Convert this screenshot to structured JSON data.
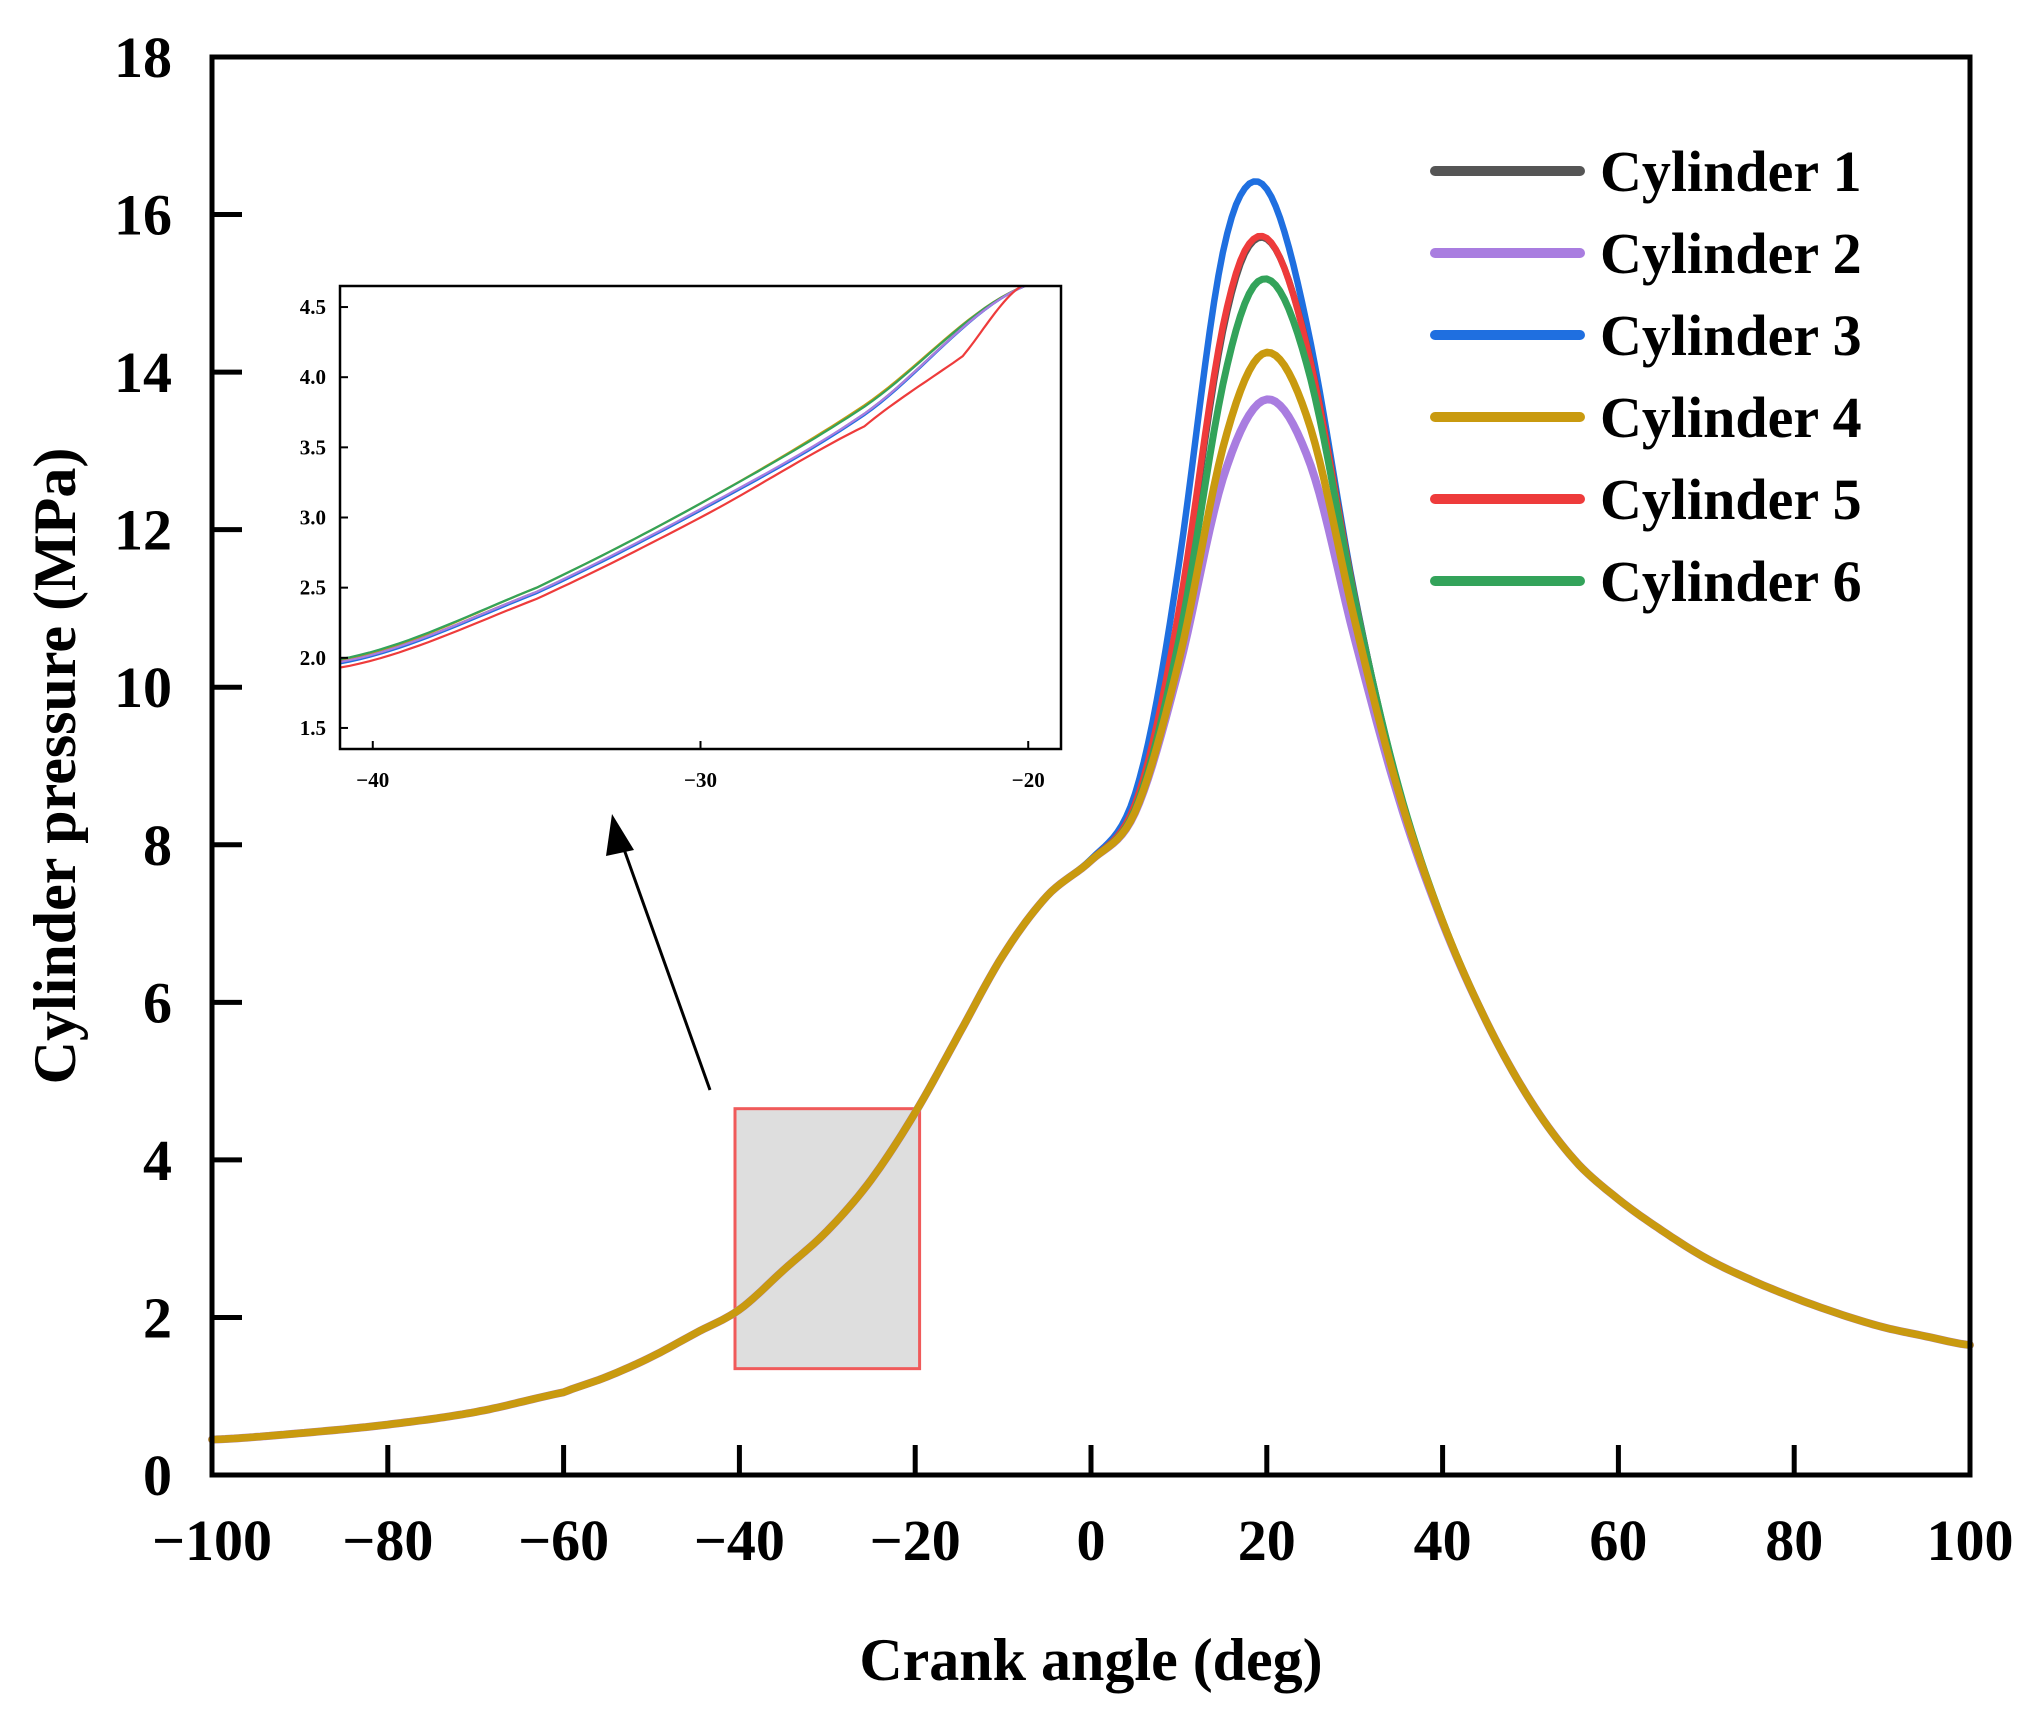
{
  "chart_data": {
    "type": "line",
    "title": "",
    "xlabel": "Crank angle (deg)",
    "ylabel": "Cylinder pressure (MPa)",
    "xlim": [
      -100,
      100
    ],
    "ylim": [
      0,
      18
    ],
    "xticks": [
      "−100",
      "−80",
      "−60",
      "−40",
      "−20",
      "0",
      "20",
      "40",
      "60",
      "80",
      "100"
    ],
    "yticks": [
      "0",
      "2",
      "4",
      "6",
      "8",
      "10",
      "12",
      "14",
      "16",
      "18"
    ],
    "legend_position": "top-right",
    "common_curve": {
      "x": [
        -100,
        -90,
        -80,
        -70,
        -60,
        -55,
        -50,
        -45,
        -40,
        -35,
        -30,
        -25,
        -20,
        -15,
        -10,
        -5,
        0,
        5,
        10,
        15,
        20,
        25,
        30,
        35,
        40,
        45,
        50,
        55,
        60,
        65,
        70,
        75,
        80,
        85,
        90,
        95,
        100
      ],
      "y": [
        0.45,
        0.53,
        0.64,
        0.8,
        1.05,
        1.25,
        1.5,
        1.8,
        2.1,
        2.6,
        3.1,
        3.75,
        4.6,
        5.6,
        6.6,
        7.35,
        7.8,
        8.4,
        10.2,
        12.5,
        13.4,
        12.6,
        10.5,
        8.55,
        7.0,
        5.75,
        4.75,
        4.0,
        3.5,
        3.1,
        2.75,
        2.48,
        2.25,
        2.05,
        1.88,
        1.76,
        1.65
      ]
    },
    "series": [
      {
        "name": "Cylinder 1",
        "color": "#555555",
        "peak_x": 18,
        "peak_y": 15.6,
        "width": 6.5
      },
      {
        "name": "Cylinder 2",
        "color": "#a97de0",
        "peak_x": 20.5,
        "peak_y": 13.65,
        "width": 8
      },
      {
        "name": "Cylinder 3",
        "color": "#1f6fe0",
        "peak_x": 16.8,
        "peak_y": 16.2,
        "width": 6.5
      },
      {
        "name": "Cylinder 4",
        "color": "#c99a0f",
        "peak_x": 20,
        "peak_y": 14.25,
        "width": 7.5
      },
      {
        "name": "Cylinder 5",
        "color": "#ee3b3b",
        "peak_x": 17.8,
        "peak_y": 15.6,
        "width": 6.5
      },
      {
        "name": "Cylinder 6",
        "color": "#33a35a",
        "peak_x": 19,
        "peak_y": 15.15,
        "width": 7
      }
    ],
    "zoom_region": {
      "x": [
        -40.5,
        -19.5
      ],
      "y": [
        1.35,
        4.65
      ]
    },
    "inset": {
      "xlim": [
        -41,
        -19
      ],
      "ylim": [
        1.35,
        4.65
      ],
      "xticks": [
        "−40",
        "−30",
        "−20"
      ],
      "yticks": [
        "1.5",
        "2.0",
        "2.5",
        "3.0",
        "3.5",
        "4.0",
        "4.5"
      ],
      "lines": [
        {
          "name": "Cylinder 4",
          "color": "#c99a0f",
          "x": [
            -41,
            -35,
            -30,
            -25,
            -20.1
          ],
          "y": [
            1.98,
            2.5,
            3.1,
            3.8,
            4.65
          ]
        },
        {
          "name": "Cylinder 6",
          "color": "#33a35a",
          "x": [
            -41,
            -35,
            -30,
            -25,
            -20.1
          ],
          "y": [
            1.99,
            2.5,
            3.1,
            3.79,
            4.65
          ]
        },
        {
          "name": "Cylinder 1",
          "color": "#555555",
          "x": [
            -41,
            -35,
            -30,
            -25,
            -20.1
          ],
          "y": [
            1.97,
            2.47,
            3.05,
            3.74,
            4.65
          ]
        },
        {
          "name": "Cylinder 3",
          "color": "#1f6fe0",
          "x": [
            -41,
            -35,
            -30,
            -25,
            -20.1
          ],
          "y": [
            1.96,
            2.46,
            3.05,
            3.73,
            4.65
          ]
        },
        {
          "name": "Cylinder 2",
          "color": "#a97de0",
          "x": [
            -41,
            -35,
            -30,
            -25,
            -20.1
          ],
          "y": [
            1.97,
            2.47,
            3.06,
            3.74,
            4.65
          ]
        },
        {
          "name": "Cylinder 5",
          "color": "#ee3b3b",
          "x": [
            -41,
            -35,
            -30,
            -25,
            -22,
            -20.2
          ],
          "y": [
            1.93,
            2.42,
            3.0,
            3.65,
            4.15,
            4.65
          ]
        }
      ]
    }
  }
}
